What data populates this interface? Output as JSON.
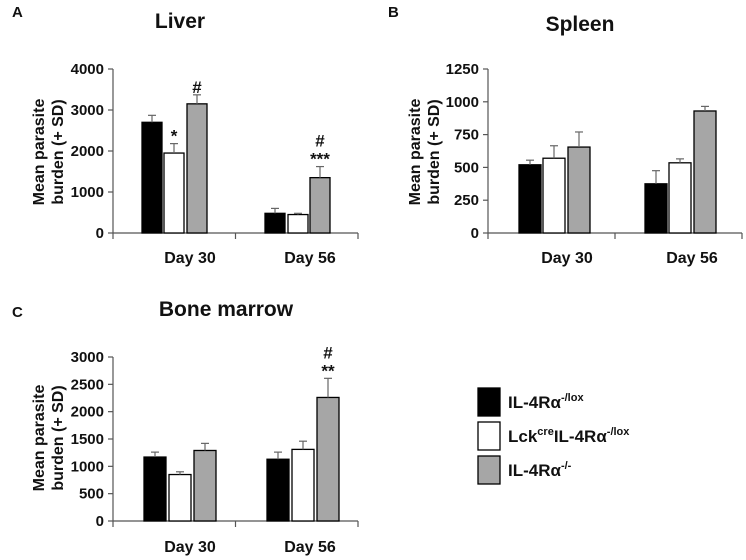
{
  "legend": {
    "items": [
      {
        "base": "IL-4Rα",
        "sup": "-/lox",
        "post": "",
        "color": "#000000"
      },
      {
        "base": "Lck",
        "sup": "cre",
        "post": "IL-4Rα",
        "sup2": "-/lox",
        "color": "#ffffff"
      },
      {
        "base": "IL-4Rα",
        "sup": "-/-",
        "post": "",
        "color": "#a6a6a6"
      }
    ]
  },
  "chart_data": [
    {
      "panel": "A",
      "type": "bar",
      "title": "Liver",
      "ylabel": [
        "Mean parasite",
        "burden (+ SD)"
      ],
      "categories": [
        "Day 30",
        "Day 56"
      ],
      "ylim": [
        0,
        4000
      ],
      "yticks": [
        0,
        1000,
        2000,
        3000,
        4000
      ],
      "series": [
        {
          "values": [
            2700,
            480
          ],
          "errors": [
            170,
            120
          ]
        },
        {
          "values": [
            1950,
            450
          ],
          "errors": [
            230,
            30
          ]
        },
        {
          "values": [
            3150,
            1350
          ],
          "errors": [
            220,
            270
          ]
        }
      ],
      "annotations": [
        {
          "category": 0,
          "series": 1,
          "lines": [
            "*"
          ]
        },
        {
          "category": 0,
          "series": 2,
          "lines": [
            "#"
          ]
        },
        {
          "category": 1,
          "series": 2,
          "lines": [
            "#",
            "***"
          ]
        }
      ]
    },
    {
      "panel": "B",
      "type": "bar",
      "title": "Spleen",
      "ylabel": [
        "Mean parasite",
        "burden (+ SD)"
      ],
      "categories": [
        "Day 30",
        "Day 56"
      ],
      "ylim": [
        0,
        1250
      ],
      "yticks": [
        0,
        250,
        500,
        750,
        1000,
        1250
      ],
      "series": [
        {
          "values": [
            520,
            375
          ],
          "errors": [
            35,
            100
          ]
        },
        {
          "values": [
            570,
            535
          ],
          "errors": [
            95,
            30
          ]
        },
        {
          "values": [
            655,
            930
          ],
          "errors": [
            115,
            35
          ]
        }
      ],
      "annotations": []
    },
    {
      "panel": "C",
      "type": "bar",
      "title": "Bone marrow",
      "ylabel": [
        "Mean parasite",
        "burden (+ SD)"
      ],
      "categories": [
        "Day 30",
        "Day 56"
      ],
      "ylim": [
        0,
        3000
      ],
      "yticks": [
        0,
        500,
        1000,
        1500,
        2000,
        2500,
        3000
      ],
      "series": [
        {
          "values": [
            1170,
            1130
          ],
          "errors": [
            90,
            130
          ]
        },
        {
          "values": [
            850,
            1310
          ],
          "errors": [
            50,
            150
          ]
        },
        {
          "values": [
            1290,
            2260
          ],
          "errors": [
            130,
            350
          ]
        }
      ],
      "annotations": [
        {
          "category": 1,
          "series": 2,
          "lines": [
            "#",
            "**"
          ]
        }
      ]
    }
  ]
}
